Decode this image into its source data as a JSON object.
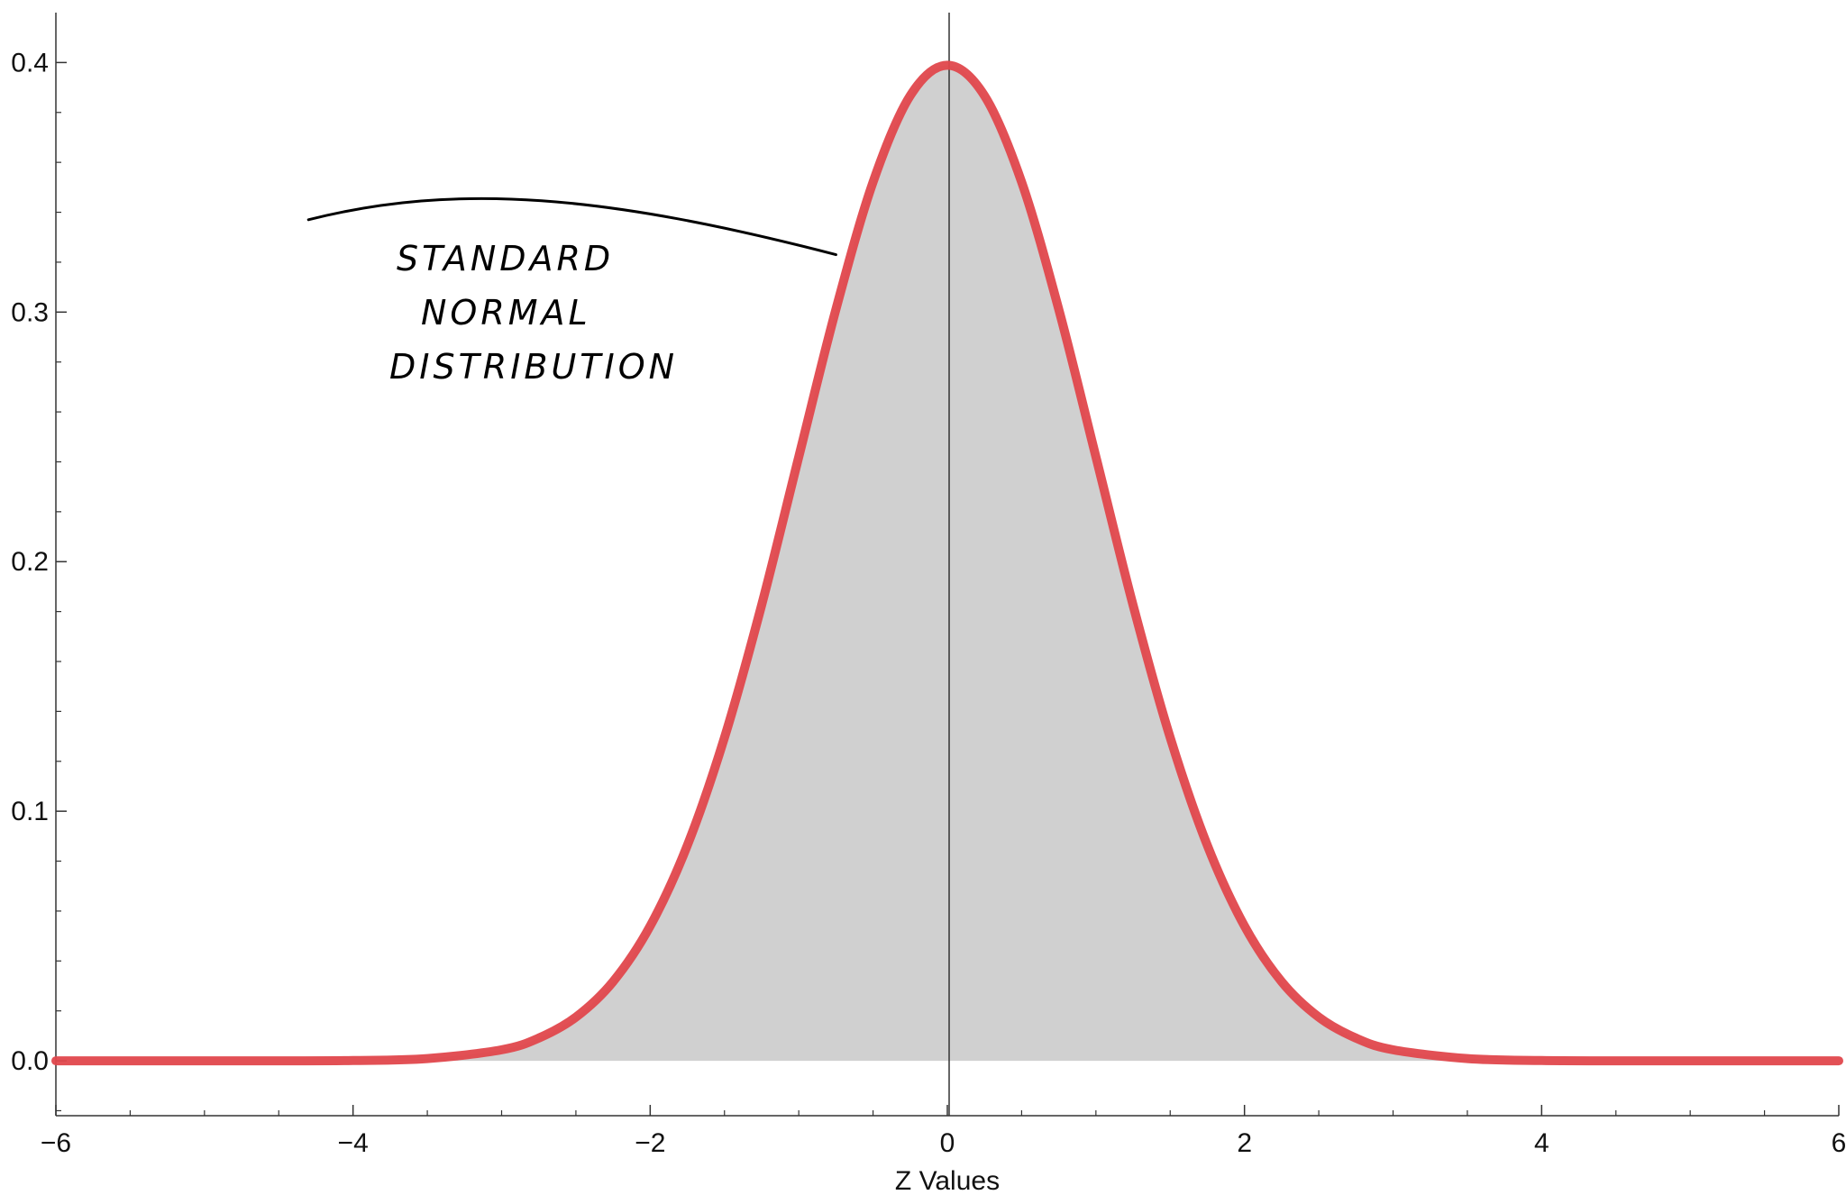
{
  "chart_data": {
    "type": "area",
    "title": "",
    "xlabel": "Z Values",
    "ylabel": "",
    "xlim": [
      -6,
      6
    ],
    "ylim": [
      -0.022,
      0.42
    ],
    "x_ticks": [
      -6,
      -4,
      -2,
      0,
      2,
      4,
      6
    ],
    "x_tick_labels": [
      "−6",
      "−4",
      "−2",
      "0",
      "2",
      "4",
      "6"
    ],
    "y_ticks": [
      0.0,
      0.1,
      0.2,
      0.3,
      0.4
    ],
    "y_tick_labels": [
      "0.0",
      "0.1",
      "0.2",
      "0.3",
      "0.4"
    ],
    "grid": false,
    "series": [
      {
        "x": [
          -6,
          -5.5,
          -5,
          -4.5,
          -4,
          -3.5,
          -3,
          -2.75,
          -2.5,
          -2.25,
          -2,
          -1.75,
          -1.5,
          -1.25,
          -1,
          -0.75,
          -0.5,
          -0.25,
          0,
          0.25,
          0.5,
          0.75,
          1,
          1.25,
          1.5,
          1.75,
          2,
          2.25,
          2.5,
          2.75,
          3,
          3.5,
          4,
          4.5,
          5,
          5.5,
          6
        ],
        "y": [
          0.0,
          0.0,
          0.0,
          0.0,
          0.0001,
          0.0009,
          0.0044,
          0.0091,
          0.0175,
          0.0317,
          0.054,
          0.0863,
          0.1295,
          0.1826,
          0.242,
          0.3011,
          0.3521,
          0.3867,
          0.3989,
          0.3867,
          0.3521,
          0.3011,
          0.242,
          0.1826,
          0.1295,
          0.0863,
          0.054,
          0.0317,
          0.0175,
          0.0091,
          0.0044,
          0.0009,
          0.0001,
          0.0,
          0.0,
          0.0,
          0.0
        ],
        "line_color": "#e0474c",
        "fill_color": "#d0d0d0"
      }
    ],
    "annotations": [
      {
        "lines": [
          "STANDARD",
          "NORMAL",
          "DISTRIBUTION"
        ]
      }
    ]
  }
}
